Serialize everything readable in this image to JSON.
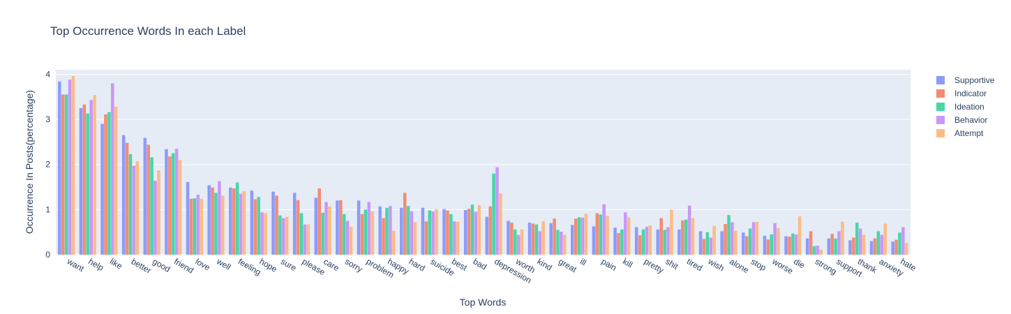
{
  "chart_data": {
    "type": "bar",
    "title": "Top Occurrence Words In each Label",
    "xlabel": "Top Words",
    "ylabel": "Occurrence In Posts(percentage)",
    "ylim": [
      0,
      4.1
    ],
    "yticks": [
      0,
      1,
      2,
      3,
      4
    ],
    "grid": true,
    "legend_position": "top-right",
    "categories": [
      "want",
      "help",
      "like",
      "better",
      "good",
      "friend",
      "love",
      "well",
      "feeling",
      "hope",
      "sure",
      "please",
      "care",
      "sorry",
      "problem",
      "happy",
      "hard",
      "suicide",
      "best",
      "bad",
      "depression",
      "worth",
      "kind",
      "great",
      "ill",
      "pain",
      "kill",
      "pretty",
      "shit",
      "tired",
      "wish",
      "alone",
      "stop",
      "worse",
      "die",
      "strong",
      "support",
      "thank",
      "anxiety",
      "hate"
    ],
    "series": [
      {
        "name": "Supportive",
        "color": "#8c9bfa",
        "values": [
          3.84,
          3.25,
          2.9,
          2.65,
          2.59,
          2.34,
          1.61,
          1.54,
          1.49,
          1.42,
          1.4,
          1.37,
          1.26,
          1.2,
          1.2,
          1.07,
          1.04,
          1.04,
          1.01,
          0.99,
          0.84,
          0.75,
          0.71,
          0.7,
          0.66,
          0.63,
          0.6,
          0.61,
          0.56,
          0.56,
          0.52,
          0.52,
          0.49,
          0.42,
          0.41,
          0.36,
          0.36,
          0.32,
          0.3,
          0.29
        ]
      },
      {
        "name": "Indicator",
        "color": "#f58b73",
        "values": [
          3.55,
          3.33,
          3.11,
          2.48,
          2.44,
          2.18,
          1.24,
          1.49,
          1.47,
          1.23,
          1.31,
          1.21,
          1.47,
          1.21,
          0.9,
          0.81,
          1.37,
          0.74,
          0.98,
          1.02,
          1.07,
          0.71,
          0.69,
          0.8,
          0.8,
          0.92,
          0.48,
          0.43,
          0.81,
          0.76,
          0.35,
          0.68,
          0.41,
          0.34,
          0.4,
          0.52,
          0.46,
          0.38,
          0.36,
          0.33
        ]
      },
      {
        "name": "Ideation",
        "color": "#47d6a8",
        "values": [
          3.55,
          3.13,
          3.16,
          2.23,
          2.16,
          2.25,
          1.25,
          1.37,
          1.6,
          1.28,
          0.87,
          0.92,
          0.93,
          0.9,
          1.0,
          1.04,
          1.08,
          0.98,
          0.9,
          1.11,
          1.8,
          0.56,
          0.67,
          0.55,
          0.83,
          0.89,
          0.56,
          0.56,
          0.55,
          0.78,
          0.5,
          0.88,
          0.58,
          0.45,
          0.47,
          0.19,
          0.36,
          0.71,
          0.52,
          0.49
        ]
      },
      {
        "name": "Behavior",
        "color": "#c997f7",
        "values": [
          3.88,
          3.43,
          3.8,
          1.97,
          1.64,
          2.35,
          1.33,
          1.63,
          1.35,
          0.94,
          0.81,
          0.67,
          1.17,
          0.75,
          1.17,
          1.08,
          0.96,
          0.96,
          0.74,
          0.95,
          1.94,
          0.44,
          0.52,
          0.51,
          0.82,
          1.12,
          0.94,
          0.62,
          0.61,
          1.09,
          0.38,
          0.72,
          0.72,
          0.7,
          0.45,
          0.2,
          0.52,
          0.58,
          0.44,
          0.61
        ]
      },
      {
        "name": "Attempt",
        "color": "#fdbb84",
        "values": [
          3.96,
          3.54,
          3.28,
          2.07,
          1.87,
          2.1,
          1.24,
          1.31,
          1.41,
          0.92,
          0.84,
          0.67,
          1.07,
          0.62,
          0.96,
          0.53,
          0.72,
          1.01,
          0.73,
          1.1,
          1.36,
          0.56,
          0.74,
          0.44,
          0.91,
          0.86,
          0.83,
          0.65,
          1.0,
          0.81,
          0.64,
          0.53,
          0.73,
          0.59,
          0.85,
          0.11,
          0.73,
          0.44,
          0.69,
          0.26
        ]
      }
    ]
  }
}
